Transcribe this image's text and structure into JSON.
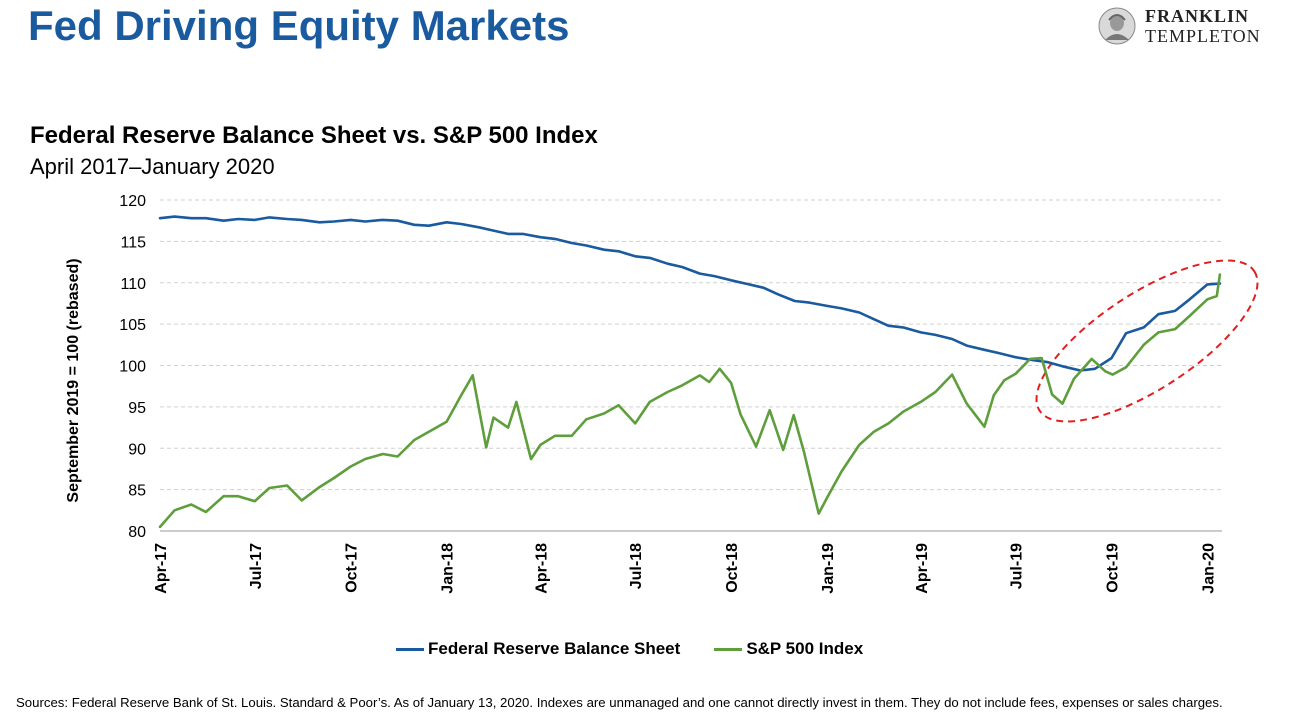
{
  "header": {
    "title": "Fed Driving Equity Markets",
    "logo_line1": "FRANKLIN",
    "logo_line2": "TEMPLETON"
  },
  "chart_data": {
    "type": "line",
    "title": "Federal Reserve Balance Sheet vs. S&P 500 Index",
    "subtitle": "April 2017–January 2020",
    "ylabel": "September 2019 = 100 (rebased)",
    "xlabel": "",
    "ylim": [
      80,
      120
    ],
    "yticks": [
      80,
      85,
      90,
      95,
      100,
      105,
      110,
      115,
      120
    ],
    "grid": "horizontal dashed",
    "legend_position": "bottom",
    "xlim": [
      "2017-04-01",
      "2020-01-15"
    ],
    "xtick_labels": [
      "Apr-17",
      "Jul-17",
      "Oct-17",
      "Jan-18",
      "Apr-18",
      "Jul-18",
      "Oct-18",
      "Jan-19",
      "Apr-19",
      "Jul-19",
      "Oct-19",
      "Jan-20"
    ],
    "xtick_dates": [
      "2017-04-01",
      "2017-07-01",
      "2017-10-01",
      "2018-01-01",
      "2018-04-01",
      "2018-07-01",
      "2018-10-01",
      "2019-01-01",
      "2019-04-01",
      "2019-07-01",
      "2019-10-01",
      "2020-01-01"
    ],
    "series": [
      {
        "name": "Federal Reserve Balance Sheet",
        "color": "#1a5a9e",
        "points": [
          [
            "2017-04-01",
            117.8
          ],
          [
            "2017-04-15",
            118.0
          ],
          [
            "2017-05-01",
            117.8
          ],
          [
            "2017-05-15",
            117.8
          ],
          [
            "2017-06-01",
            117.5
          ],
          [
            "2017-06-15",
            117.7
          ],
          [
            "2017-07-01",
            117.6
          ],
          [
            "2017-07-15",
            117.9
          ],
          [
            "2017-08-01",
            117.7
          ],
          [
            "2017-08-15",
            117.6
          ],
          [
            "2017-09-01",
            117.3
          ],
          [
            "2017-09-15",
            117.4
          ],
          [
            "2017-10-01",
            117.6
          ],
          [
            "2017-10-15",
            117.4
          ],
          [
            "2017-11-01",
            117.6
          ],
          [
            "2017-11-15",
            117.5
          ],
          [
            "2017-12-01",
            117.0
          ],
          [
            "2017-12-15",
            116.9
          ],
          [
            "2018-01-01",
            117.3
          ],
          [
            "2018-01-15",
            117.1
          ],
          [
            "2018-02-01",
            116.7
          ],
          [
            "2018-02-15",
            116.3
          ],
          [
            "2018-03-01",
            115.9
          ],
          [
            "2018-03-15",
            115.9
          ],
          [
            "2018-04-01",
            115.5
          ],
          [
            "2018-04-15",
            115.3
          ],
          [
            "2018-05-01",
            114.8
          ],
          [
            "2018-05-15",
            114.5
          ],
          [
            "2018-06-01",
            114.0
          ],
          [
            "2018-06-15",
            113.8
          ],
          [
            "2018-07-01",
            113.2
          ],
          [
            "2018-07-15",
            113.0
          ],
          [
            "2018-08-01",
            112.3
          ],
          [
            "2018-08-15",
            111.9
          ],
          [
            "2018-09-01",
            111.1
          ],
          [
            "2018-09-15",
            110.8
          ],
          [
            "2018-10-01",
            110.3
          ],
          [
            "2018-10-15",
            109.9
          ],
          [
            "2018-11-01",
            109.4
          ],
          [
            "2018-11-15",
            108.6
          ],
          [
            "2018-12-01",
            107.8
          ],
          [
            "2018-12-15",
            107.6
          ],
          [
            "2019-01-01",
            107.2
          ],
          [
            "2019-01-15",
            106.9
          ],
          [
            "2019-02-01",
            106.4
          ],
          [
            "2019-02-15",
            105.6
          ],
          [
            "2019-03-01",
            104.8
          ],
          [
            "2019-03-15",
            104.6
          ],
          [
            "2019-04-01",
            104.0
          ],
          [
            "2019-04-15",
            103.7
          ],
          [
            "2019-05-01",
            103.2
          ],
          [
            "2019-05-15",
            102.4
          ],
          [
            "2019-06-01",
            101.9
          ],
          [
            "2019-06-15",
            101.5
          ],
          [
            "2019-07-01",
            101.0
          ],
          [
            "2019-07-15",
            100.7
          ],
          [
            "2019-08-01",
            100.4
          ],
          [
            "2019-08-15",
            99.9
          ],
          [
            "2019-09-01",
            99.4
          ],
          [
            "2019-09-15",
            99.6
          ],
          [
            "2019-10-01",
            100.9
          ],
          [
            "2019-10-15",
            103.9
          ],
          [
            "2019-11-01",
            104.6
          ],
          [
            "2019-11-15",
            106.2
          ],
          [
            "2019-12-01",
            106.6
          ],
          [
            "2019-12-15",
            108.0
          ],
          [
            "2020-01-01",
            109.8
          ],
          [
            "2020-01-13",
            109.9
          ]
        ]
      },
      {
        "name": "S&P 500 Index",
        "color": "#5e9e3c",
        "points": [
          [
            "2017-04-01",
            80.5
          ],
          [
            "2017-04-15",
            82.5
          ],
          [
            "2017-05-01",
            83.2
          ],
          [
            "2017-05-15",
            82.3
          ],
          [
            "2017-06-01",
            84.2
          ],
          [
            "2017-06-15",
            84.2
          ],
          [
            "2017-07-01",
            83.6
          ],
          [
            "2017-07-15",
            85.2
          ],
          [
            "2017-08-01",
            85.5
          ],
          [
            "2017-08-15",
            83.7
          ],
          [
            "2017-09-01",
            85.3
          ],
          [
            "2017-09-15",
            86.4
          ],
          [
            "2017-10-01",
            87.8
          ],
          [
            "2017-10-15",
            88.7
          ],
          [
            "2017-11-01",
            89.3
          ],
          [
            "2017-11-15",
            89.0
          ],
          [
            "2017-12-01",
            91.0
          ],
          [
            "2017-12-15",
            92.0
          ],
          [
            "2018-01-01",
            93.2
          ],
          [
            "2018-01-15",
            96.4
          ],
          [
            "2018-01-26",
            98.8
          ],
          [
            "2018-02-08",
            90.1
          ],
          [
            "2018-02-15",
            93.7
          ],
          [
            "2018-03-01",
            92.5
          ],
          [
            "2018-03-09",
            95.6
          ],
          [
            "2018-03-23",
            88.7
          ],
          [
            "2018-04-01",
            90.4
          ],
          [
            "2018-04-15",
            91.5
          ],
          [
            "2018-05-01",
            91.5
          ],
          [
            "2018-05-15",
            93.5
          ],
          [
            "2018-06-01",
            94.2
          ],
          [
            "2018-06-15",
            95.2
          ],
          [
            "2018-07-01",
            93.0
          ],
          [
            "2018-07-15",
            95.6
          ],
          [
            "2018-08-01",
            96.8
          ],
          [
            "2018-08-15",
            97.6
          ],
          [
            "2018-09-01",
            98.8
          ],
          [
            "2018-09-10",
            98.0
          ],
          [
            "2018-09-20",
            99.6
          ],
          [
            "2018-10-01",
            97.9
          ],
          [
            "2018-10-10",
            94.1
          ],
          [
            "2018-10-25",
            90.2
          ],
          [
            "2018-11-07",
            94.6
          ],
          [
            "2018-11-20",
            89.8
          ],
          [
            "2018-11-30",
            94.0
          ],
          [
            "2018-12-10",
            89.5
          ],
          [
            "2018-12-24",
            82.1
          ],
          [
            "2019-01-01",
            84.0
          ],
          [
            "2019-01-15",
            87.2
          ],
          [
            "2019-02-01",
            90.4
          ],
          [
            "2019-02-15",
            92.0
          ],
          [
            "2019-03-01",
            93.0
          ],
          [
            "2019-03-15",
            94.4
          ],
          [
            "2019-04-01",
            95.6
          ],
          [
            "2019-04-15",
            96.8
          ],
          [
            "2019-05-01",
            98.9
          ],
          [
            "2019-05-15",
            95.4
          ],
          [
            "2019-06-01",
            92.6
          ],
          [
            "2019-06-10",
            96.4
          ],
          [
            "2019-06-20",
            98.2
          ],
          [
            "2019-07-01",
            99.0
          ],
          [
            "2019-07-15",
            100.8
          ],
          [
            "2019-07-26",
            100.9
          ],
          [
            "2019-08-05",
            96.5
          ],
          [
            "2019-08-15",
            95.4
          ],
          [
            "2019-08-26",
            98.4
          ],
          [
            "2019-09-12",
            100.8
          ],
          [
            "2019-09-25",
            99.3
          ],
          [
            "2019-10-02",
            98.9
          ],
          [
            "2019-10-15",
            99.8
          ],
          [
            "2019-11-01",
            102.5
          ],
          [
            "2019-11-15",
            104.0
          ],
          [
            "2019-12-01",
            104.4
          ],
          [
            "2019-12-15",
            106.0
          ],
          [
            "2020-01-01",
            108.0
          ],
          [
            "2020-01-10",
            108.4
          ],
          [
            "2020-01-13",
            111.0
          ]
        ]
      }
    ]
  },
  "source": "Sources: Federal Reserve Bank of St. Louis. Standard & Poor’s. As of January 13, 2020. Indexes are unmanaged and one cannot directly invest in them. They do not include fees, expenses or sales charges."
}
